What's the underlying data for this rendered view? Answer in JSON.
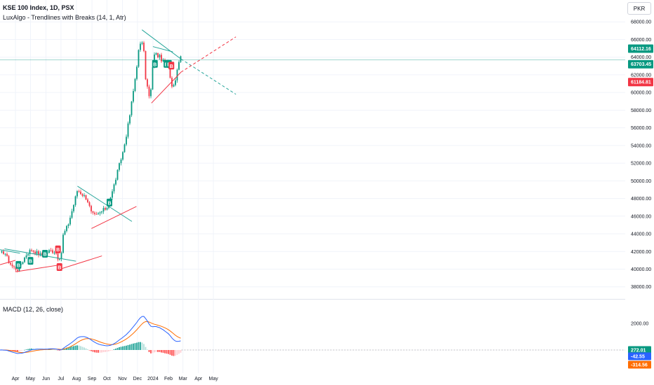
{
  "header": {
    "title": "KSE 100 Index, 1D, PSX",
    "indicator": "LuxAlgo - Trendlines with Breaks (14, 1, Atr)",
    "macd_label": "MACD (12, 26, close)",
    "currency": "PKR"
  },
  "price_badges": [
    {
      "text": "64112.16",
      "color": "#089981"
    },
    {
      "text": "63703.45",
      "color": "#089981"
    },
    {
      "text": "61184.81",
      "color": "#f23645"
    }
  ],
  "macd_badges": [
    {
      "text": "272.01",
      "color": "#089981"
    },
    {
      "text": "-42.55",
      "color": "#2962ff"
    },
    {
      "text": "-314.56",
      "color": "#ff6d00"
    }
  ],
  "break_labels": [
    {
      "text": "B",
      "color": "#089981"
    },
    {
      "text": "B",
      "color": "#089981"
    },
    {
      "text": "B",
      "color": "#089981"
    },
    {
      "text": "B",
      "color": "#f23645"
    },
    {
      "text": "B",
      "color": "#f23645"
    },
    {
      "text": "B",
      "color": "#089981"
    },
    {
      "text": "B",
      "color": "#089981"
    },
    {
      "text": "B",
      "color": "#089981"
    },
    {
      "text": "B",
      "color": "#089981"
    },
    {
      "text": "B",
      "color": "#f23645"
    }
  ],
  "chart_data": [
    {
      "type": "candlestick",
      "title": "KSE 100 Index, 1D, PSX",
      "ylabel": "PKR",
      "ylim": [
        37000,
        69000
      ],
      "yticks": [
        38000,
        40000,
        42000,
        44000,
        46000,
        48000,
        50000,
        52000,
        54000,
        56000,
        58000,
        60000,
        62000,
        64000,
        66000,
        68000
      ],
      "ytick_labels": [
        "38000.00",
        "40000.00",
        "42000.00",
        "44000.00",
        "46000.00",
        "48000.00",
        "50000.00",
        "52000.00",
        "54000.00",
        "56000.00",
        "58000.00",
        "60000.00",
        "62000.00",
        "64000.00",
        "66000.00",
        "68000.00"
      ],
      "xtick_labels": [
        "Apr",
        "May",
        "Jun",
        "Jul",
        "Aug",
        "Sep",
        "Oct",
        "Nov",
        "Dec",
        "2024",
        "Feb",
        "Mar",
        "Apr",
        "May"
      ],
      "grid": true,
      "close_path": [
        [
          "2023-03-01",
          41700
        ],
        [
          "2023-03-10",
          42000
        ],
        [
          "2023-03-17",
          41000
        ],
        [
          "2023-03-27",
          40200
        ],
        [
          "2023-04-05",
          40000
        ],
        [
          "2023-04-14",
          40800
        ],
        [
          "2023-04-24",
          41800
        ],
        [
          "2023-05-03",
          42200
        ],
        [
          "2023-05-12",
          41900
        ],
        [
          "2023-05-22",
          41600
        ],
        [
          "2023-05-31",
          41800
        ],
        [
          "2023-06-09",
          42100
        ],
        [
          "2023-06-20",
          42000
        ],
        [
          "2023-06-27",
          41000
        ],
        [
          "2023-06-30",
          40800
        ],
        [
          "2023-07-05",
          43800
        ],
        [
          "2023-07-15",
          45000
        ],
        [
          "2023-07-25",
          47000
        ],
        [
          "2023-08-03",
          49000
        ],
        [
          "2023-08-12",
          48500
        ],
        [
          "2023-08-22",
          48000
        ],
        [
          "2023-08-31",
          46300
        ],
        [
          "2023-09-08",
          46000
        ],
        [
          "2023-09-20",
          46500
        ],
        [
          "2023-10-01",
          47000
        ],
        [
          "2023-10-12",
          48800
        ],
        [
          "2023-10-22",
          51000
        ],
        [
          "2023-11-03",
          53500
        ],
        [
          "2023-11-14",
          56800
        ],
        [
          "2023-11-25",
          61000
        ],
        [
          "2023-12-04",
          65000
        ],
        [
          "2023-12-12",
          66000
        ],
        [
          "2023-12-17",
          61800
        ],
        [
          "2023-12-26",
          59000
        ],
        [
          "2024-01-03",
          64500
        ],
        [
          "2024-01-15",
          64000
        ],
        [
          "2024-01-25",
          63200
        ],
        [
          "2024-02-02",
          62700
        ],
        [
          "2024-02-08",
          60700
        ],
        [
          "2024-02-15",
          61500
        ],
        [
          "2024-02-22",
          63700
        ],
        [
          "2024-02-27",
          64112
        ]
      ],
      "current": {
        "close": 64112.16,
        "line": 63703.45,
        "lower_trend": 61184.81
      }
    },
    {
      "type": "line",
      "title": "MACD (12, 26, close)",
      "series": [
        {
          "name": "MACD",
          "color": "#2962ff"
        },
        {
          "name": "Signal",
          "color": "#ff6d00"
        },
        {
          "name": "Histogram",
          "color": "#26a69a"
        }
      ],
      "yticks": [
        2000
      ],
      "ytick_labels": [
        "2000.00"
      ],
      "last_values": {
        "histogram": 272.01,
        "macd": -42.55,
        "signal": -314.56
      }
    }
  ]
}
